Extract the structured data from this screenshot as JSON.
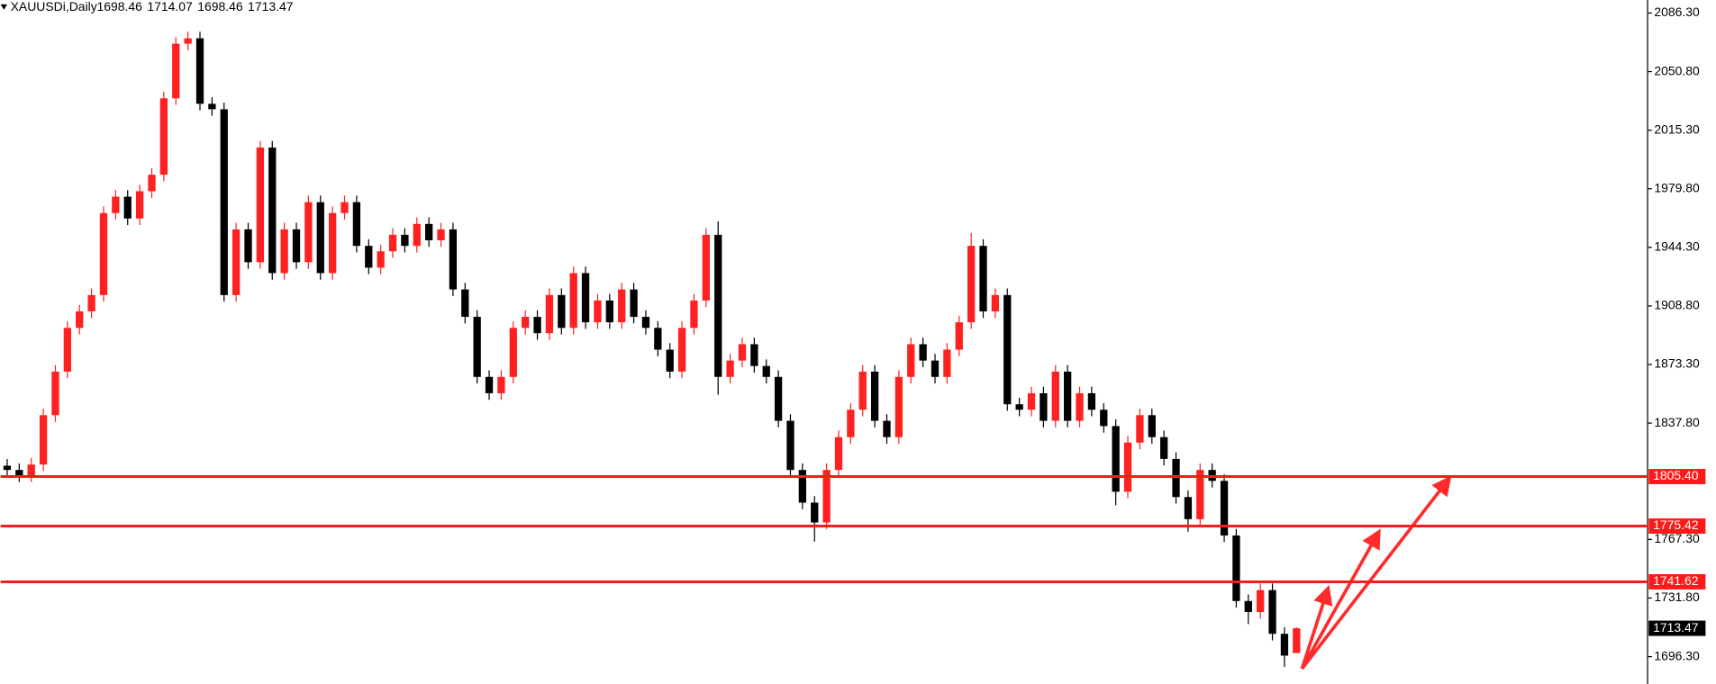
{
  "chart_data": {
    "type": "candlestick",
    "title": "XAUUSDi,Daily",
    "up_color": "#ff2020",
    "down_color": "#000000",
    "level_color": "#ff1a1a",
    "ylim": [
      1679.7,
      2094.2
    ],
    "yticks": [
      {
        "value": 2086.3,
        "label": "2086.30"
      },
      {
        "value": 2050.8,
        "label": "2050.80"
      },
      {
        "value": 2015.3,
        "label": "2015.30"
      },
      {
        "value": 1979.8,
        "label": "1979.80"
      },
      {
        "value": 1944.3,
        "label": "1944.30"
      },
      {
        "value": 1908.8,
        "label": "1908.80"
      },
      {
        "value": 1873.3,
        "label": "1873.30"
      },
      {
        "value": 1837.8,
        "label": "1837.80"
      },
      {
        "value": 1767.3,
        "label": "1767.30"
      },
      {
        "value": 1731.8,
        "label": "1731.80"
      },
      {
        "value": 1696.3,
        "label": "1696.30"
      }
    ],
    "levels": [
      {
        "value": 1805.4,
        "label": "1805.40"
      },
      1775.42,
      1741.62
    ],
    "candles": {
      "open": [
        1812.0,
        1809.4,
        1806.1,
        1812.7,
        1842.6,
        1869.0,
        1895.5,
        1905.5,
        1915.4,
        1965.1,
        1975.0,
        1961.8,
        1978.3,
        1988.3,
        2034.6,
        2067.7,
        2071.0,
        2031.3,
        2028.0,
        1915.4,
        1955.2,
        1935.3,
        2004.8,
        1928.7,
        1955.2,
        1935.3,
        1971.7,
        1928.7,
        1965.1,
        1971.7,
        1945.2,
        1932.0,
        1941.9,
        1951.9,
        1945.2,
        1958.5,
        1948.6,
        1955.2,
        1918.8,
        1902.2,
        1865.8,
        1855.9,
        1865.8,
        1895.5,
        1902.2,
        1892.3,
        1915.4,
        1895.5,
        1928.7,
        1898.9,
        1912.1,
        1898.9,
        1918.8,
        1902.2,
        1895.5,
        1882.3,
        1869.0,
        1895.5,
        1912.1,
        1951.9,
        1865.8,
        1875.7,
        1885.6,
        1872.4,
        1865.8,
        1839.2,
        1809.4,
        1789.6,
        1777.6,
        1809.4,
        1829.3,
        1845.9,
        1869.0,
        1839.2,
        1829.3,
        1865.8,
        1885.6,
        1875.7,
        1865.8,
        1882.3,
        1898.9,
        1945.2,
        1905.5,
        1915.4,
        1849.2,
        1845.9,
        1855.9,
        1839.2,
        1869.0,
        1839.2,
        1855.9,
        1845.9,
        1836.0,
        1796.2,
        1826.0,
        1842.6,
        1829.3,
        1816.1,
        1793.0,
        1779.6,
        1809.4,
        1802.8,
        1769.7,
        1730.0,
        1723.3,
        1736.6,
        1710.1,
        1698.46
      ],
      "high": [
        1816.0,
        1813.4,
        1816.7,
        1846.6,
        1873.0,
        1899.5,
        1909.5,
        1919.4,
        1969.1,
        1979.0,
        1979.0,
        1982.3,
        1992.3,
        2038.6,
        2071.7,
        2075.0,
        2075.0,
        2035.3,
        2032.0,
        1959.2,
        1959.2,
        2008.8,
        2008.8,
        1959.2,
        1959.2,
        1975.7,
        1975.7,
        1969.1,
        1975.7,
        1975.7,
        1949.2,
        1945.9,
        1955.9,
        1955.9,
        1962.5,
        1962.5,
        1959.2,
        1959.2,
        1922.8,
        1906.2,
        1869.8,
        1869.8,
        1899.5,
        1906.2,
        1906.2,
        1919.4,
        1919.4,
        1932.7,
        1932.7,
        1916.1,
        1916.1,
        1922.8,
        1922.8,
        1906.2,
        1899.5,
        1886.3,
        1899.5,
        1916.1,
        1955.9,
        1960.0,
        1879.7,
        1889.6,
        1889.6,
        1876.4,
        1869.8,
        1843.2,
        1813.4,
        1793.6,
        1813.4,
        1833.3,
        1849.9,
        1873.0,
        1873.0,
        1843.2,
        1869.8,
        1889.6,
        1889.6,
        1879.7,
        1886.3,
        1902.9,
        1953.0,
        1949.2,
        1919.4,
        1919.4,
        1853.2,
        1859.9,
        1859.9,
        1873.0,
        1873.0,
        1859.9,
        1859.9,
        1849.9,
        1840.0,
        1830.0,
        1846.6,
        1846.6,
        1833.3,
        1820.1,
        1797.0,
        1813.4,
        1813.4,
        1806.8,
        1773.7,
        1734.0,
        1740.6,
        1740.6,
        1714.1,
        1714.07
      ],
      "low": [
        1805.4,
        1802.1,
        1802.1,
        1808.7,
        1838.6,
        1865.0,
        1891.5,
        1901.5,
        1911.4,
        1961.1,
        1957.8,
        1957.8,
        1974.3,
        1984.3,
        2030.6,
        2063.7,
        2027.3,
        2024.0,
        1911.4,
        1911.4,
        1931.3,
        1931.3,
        1924.7,
        1924.7,
        1931.3,
        1931.3,
        1924.7,
        1924.7,
        1961.1,
        1941.2,
        1928.0,
        1928.0,
        1937.9,
        1941.2,
        1941.2,
        1944.6,
        1944.6,
        1914.8,
        1898.2,
        1861.8,
        1851.9,
        1851.9,
        1861.8,
        1891.5,
        1888.3,
        1888.3,
        1891.5,
        1891.5,
        1894.9,
        1894.9,
        1894.9,
        1894.9,
        1898.2,
        1891.5,
        1878.3,
        1865.0,
        1865.0,
        1891.5,
        1908.1,
        1855.0,
        1861.8,
        1871.7,
        1868.4,
        1861.8,
        1835.2,
        1805.4,
        1785.6,
        1766.0,
        1773.6,
        1805.4,
        1825.3,
        1841.9,
        1835.2,
        1825.3,
        1825.3,
        1861.8,
        1871.7,
        1861.8,
        1861.8,
        1878.3,
        1894.9,
        1901.5,
        1901.5,
        1845.2,
        1841.9,
        1841.9,
        1835.2,
        1835.2,
        1835.2,
        1835.2,
        1841.9,
        1832.0,
        1788.0,
        1792.2,
        1822.0,
        1825.3,
        1812.1,
        1789.0,
        1772.0,
        1775.6,
        1798.8,
        1765.7,
        1726.0,
        1716.0,
        1719.3,
        1706.1,
        1690.0,
        1698.46
      ],
      "close": [
        1809.4,
        1806.1,
        1812.7,
        1842.6,
        1869.0,
        1895.5,
        1905.5,
        1915.4,
        1965.1,
        1975.0,
        1961.8,
        1978.3,
        1988.3,
        2034.6,
        2067.7,
        2071.0,
        2031.3,
        2028.0,
        1915.4,
        1955.2,
        1935.3,
        2004.8,
        1928.7,
        1955.2,
        1935.3,
        1971.7,
        1928.7,
        1965.1,
        1971.7,
        1945.2,
        1932.0,
        1941.9,
        1951.9,
        1945.2,
        1958.5,
        1948.6,
        1955.2,
        1918.8,
        1902.2,
        1865.8,
        1855.9,
        1865.8,
        1895.5,
        1902.2,
        1892.3,
        1915.4,
        1895.5,
        1928.7,
        1898.9,
        1912.1,
        1898.9,
        1918.8,
        1902.2,
        1895.5,
        1882.3,
        1869.0,
        1895.5,
        1912.1,
        1951.9,
        1865.8,
        1875.7,
        1885.6,
        1872.4,
        1865.8,
        1839.2,
        1809.4,
        1789.6,
        1777.6,
        1809.4,
        1829.3,
        1845.9,
        1869.0,
        1839.2,
        1829.3,
        1865.8,
        1885.6,
        1875.7,
        1865.8,
        1882.3,
        1898.9,
        1945.2,
        1905.5,
        1915.4,
        1849.2,
        1845.9,
        1855.9,
        1839.2,
        1869.0,
        1839.2,
        1855.9,
        1845.9,
        1836.0,
        1796.2,
        1826.0,
        1842.6,
        1829.3,
        1816.1,
        1793.0,
        1779.6,
        1809.4,
        1802.8,
        1769.7,
        1730.0,
        1723.3,
        1736.6,
        1710.1,
        1696.9,
        1713.47
      ]
    }
  }
}
